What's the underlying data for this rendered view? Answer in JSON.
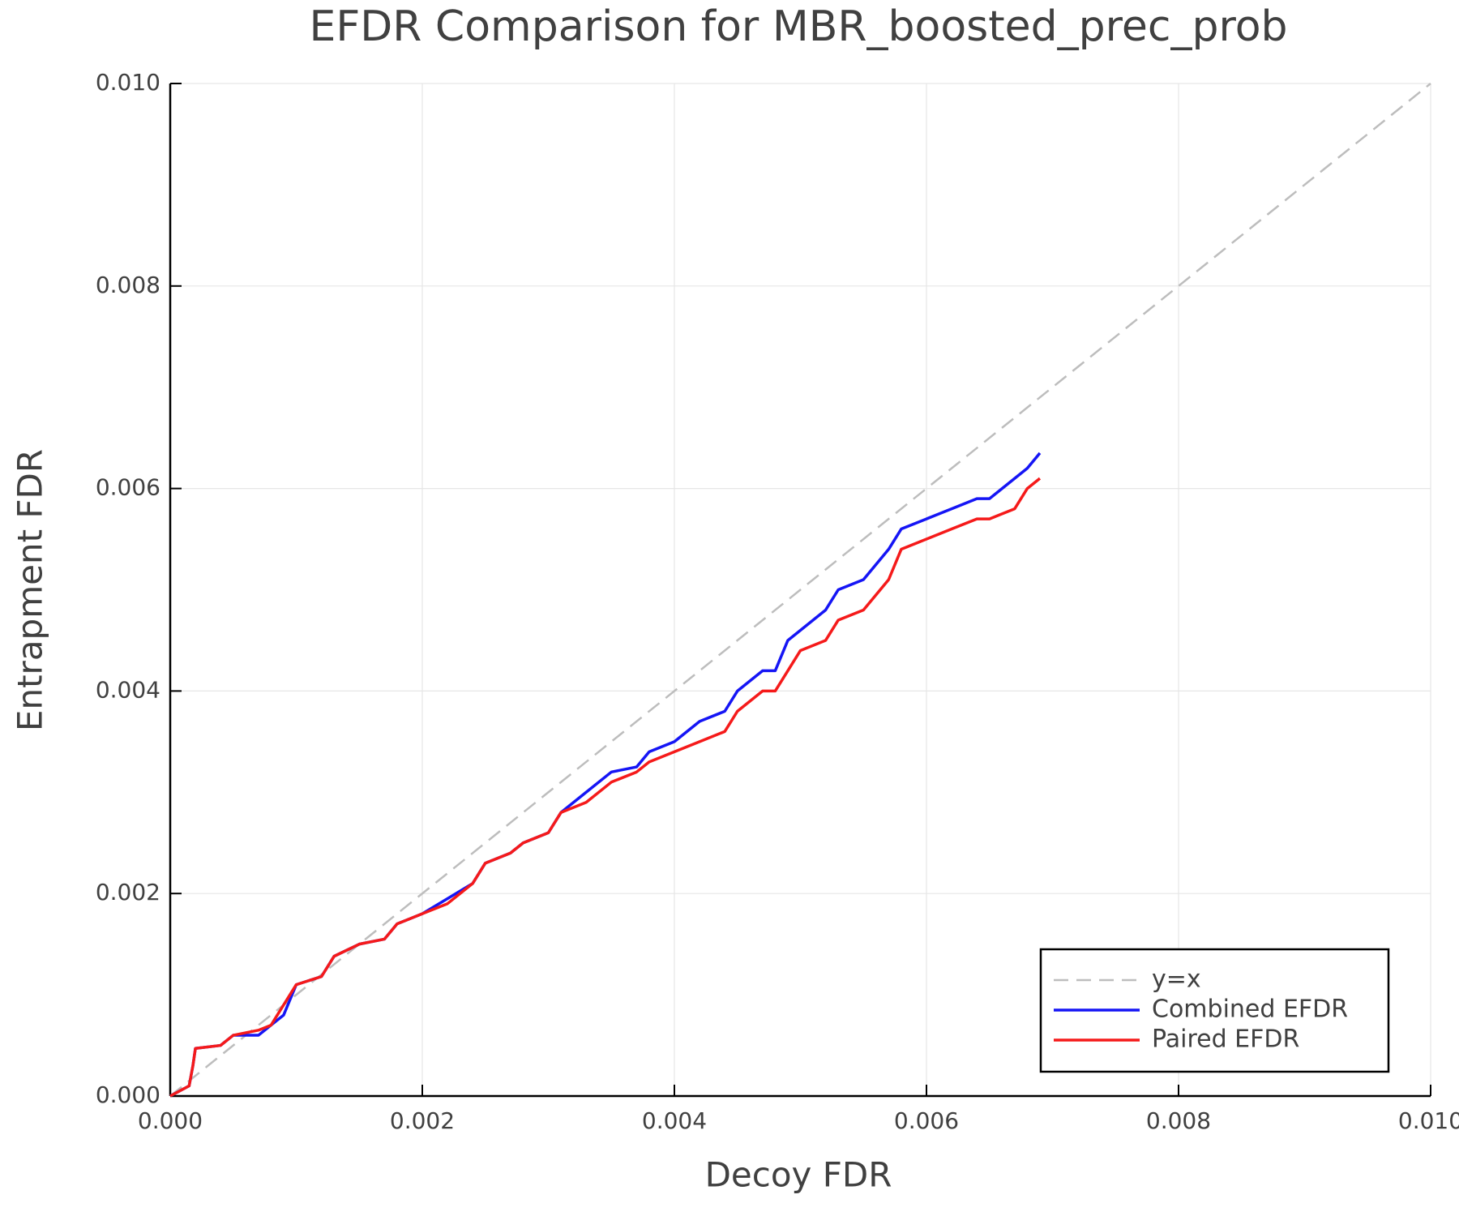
{
  "chart_data": {
    "type": "line",
    "title": "EFDR Comparison for MBR_boosted_prec_prob",
    "x_label": "Decoy FDR",
    "y_label": "Entrapment FDR",
    "xlim": [
      0,
      0.01
    ],
    "ylim": [
      0,
      0.01
    ],
    "xticks": [
      {
        "value": 0,
        "label": "0.000"
      },
      {
        "value": 0.002,
        "label": "0.002"
      },
      {
        "value": 0.004,
        "label": "0.004"
      },
      {
        "value": 0.006,
        "label": "0.006"
      },
      {
        "value": 0.008,
        "label": "0.008"
      },
      {
        "value": 0.01,
        "label": "0.010"
      }
    ],
    "yticks": [
      {
        "value": 0,
        "label": "0.000"
      },
      {
        "value": 0.002,
        "label": "0.002"
      },
      {
        "value": 0.004,
        "label": "0.004"
      },
      {
        "value": 0.006,
        "label": "0.006"
      },
      {
        "value": 0.008,
        "label": "0.008"
      },
      {
        "value": 0.01,
        "label": "0.010"
      }
    ],
    "grid": true,
    "legend": "bottom-right",
    "series": [
      {
        "name": "y=x",
        "color": "#bdbdbd",
        "dashed": true,
        "x": [
          0,
          0.01
        ],
        "values": [
          0,
          0.01
        ]
      },
      {
        "name": "Combined EFDR",
        "color": "#1515f5",
        "dashed": false,
        "x": [
          0,
          0.00015,
          0.00018,
          0.0002,
          0.0004,
          0.0005,
          0.0007,
          0.0008,
          0.0009,
          0.001,
          0.0012,
          0.0013,
          0.0015,
          0.0017,
          0.0018,
          0.002,
          0.0022,
          0.0024,
          0.0025,
          0.0027,
          0.0028,
          0.003,
          0.0031,
          0.0033,
          0.0035,
          0.0037,
          0.0038,
          0.004,
          0.0042,
          0.0044,
          0.0045,
          0.0047,
          0.0048,
          0.0049,
          0.005,
          0.0052,
          0.0053,
          0.0055,
          0.0057,
          0.0058,
          0.006,
          0.0062,
          0.0064,
          0.0065,
          0.0067,
          0.0068,
          0.0069
        ],
        "values": [
          0,
          0.0001,
          0.0003,
          0.00047,
          0.0005,
          0.0006,
          0.0006,
          0.0007,
          0.0008,
          0.0011,
          0.00118,
          0.00138,
          0.0015,
          0.00155,
          0.0017,
          0.0018,
          0.00195,
          0.0021,
          0.0023,
          0.0024,
          0.0025,
          0.0026,
          0.0028,
          0.003,
          0.0032,
          0.00325,
          0.0034,
          0.0035,
          0.0037,
          0.0038,
          0.004,
          0.0042,
          0.0042,
          0.0045,
          0.0046,
          0.0048,
          0.005,
          0.0051,
          0.0054,
          0.0056,
          0.0057,
          0.0058,
          0.0059,
          0.0059,
          0.0061,
          0.0062,
          0.00635
        ]
      },
      {
        "name": "Paired EFDR",
        "color": "#f51a1a",
        "dashed": false,
        "x": [
          0,
          0.00015,
          0.00018,
          0.0002,
          0.0004,
          0.0005,
          0.0007,
          0.0008,
          0.0009,
          0.001,
          0.0012,
          0.0013,
          0.0015,
          0.0017,
          0.0018,
          0.002,
          0.0022,
          0.0024,
          0.0025,
          0.0027,
          0.0028,
          0.003,
          0.0031,
          0.0033,
          0.0035,
          0.0037,
          0.0038,
          0.004,
          0.0042,
          0.0044,
          0.0045,
          0.0047,
          0.0048,
          0.0049,
          0.005,
          0.0052,
          0.0053,
          0.0055,
          0.0057,
          0.0058,
          0.006,
          0.0062,
          0.0064,
          0.0065,
          0.0067,
          0.0068,
          0.0069
        ],
        "values": [
          0,
          0.0001,
          0.0003,
          0.00047,
          0.0005,
          0.0006,
          0.00065,
          0.0007,
          0.0009,
          0.0011,
          0.00118,
          0.00138,
          0.0015,
          0.00155,
          0.0017,
          0.0018,
          0.0019,
          0.0021,
          0.0023,
          0.0024,
          0.0025,
          0.0026,
          0.0028,
          0.0029,
          0.0031,
          0.0032,
          0.0033,
          0.0034,
          0.0035,
          0.0036,
          0.0038,
          0.004,
          0.004,
          0.0042,
          0.0044,
          0.0045,
          0.0047,
          0.0048,
          0.0051,
          0.0054,
          0.0055,
          0.0056,
          0.0057,
          0.0057,
          0.0058,
          0.006,
          0.0061
        ]
      }
    ]
  }
}
